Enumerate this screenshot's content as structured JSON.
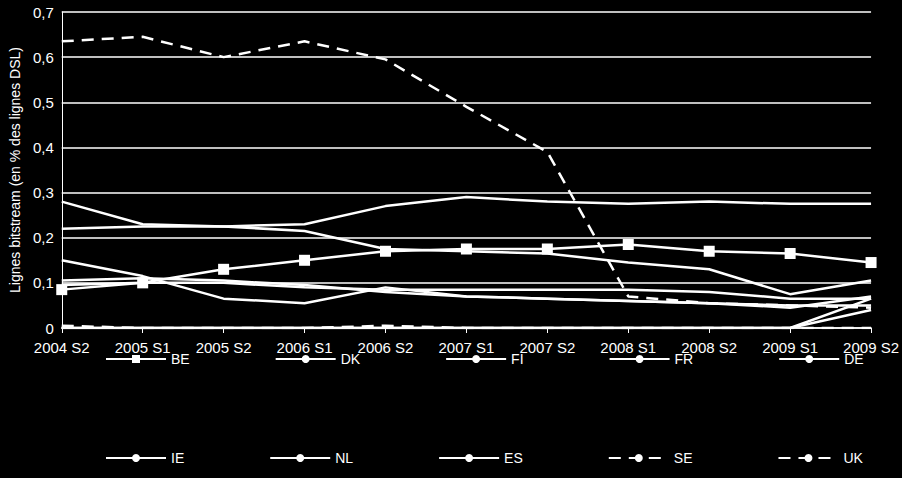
{
  "chart_data": {
    "type": "line",
    "y_label": "Lignes bitstream (en % des lignes DSL)",
    "categories": [
      "2004 S2",
      "2005 S1",
      "2005 S2",
      "2006 S1",
      "2006 S2",
      "2007 S1",
      "2007 S2",
      "2008 S1",
      "2008 S2",
      "2009 S1",
      "2009 S2"
    ],
    "ylim": [
      0,
      0.7
    ],
    "yticks": [
      0,
      {
        "value": 0.1,
        "label": "0,1"
      },
      {
        "value": 0.2,
        "label": "0,2"
      },
      {
        "value": 0.3,
        "label": "0,3"
      },
      {
        "value": 0.4,
        "label": "0,4"
      },
      {
        "value": 0.5,
        "label": "0,5"
      },
      {
        "value": 0.6,
        "label": "0,6"
      },
      {
        "value": 0.7,
        "label": "0,7"
      }
    ],
    "grid": true,
    "legend": "bottom",
    "series": [
      {
        "name": "BE",
        "color": "#ffffff",
        "marker": "square",
        "line_style": "solid",
        "values": [
          0.085,
          0.1,
          0.13,
          0.15,
          0.17,
          0.175,
          0.175,
          0.185,
          0.17,
          0.165,
          0.145
        ]
      },
      {
        "name": "DK",
        "color": "#ffffff",
        "marker": "none",
        "line_style": "solid",
        "values": [
          0.22,
          0.225,
          0.225,
          0.23,
          0.27,
          0.29,
          0.28,
          0.275,
          0.28,
          0.275,
          0.275
        ]
      },
      {
        "name": "FI",
        "color": "#ffffff",
        "marker": "none",
        "line_style": "solid",
        "values": [
          0.28,
          0.23,
          0.225,
          0.215,
          0.175,
          0.17,
          0.165,
          0.145,
          0.13,
          0.075,
          0.105
        ]
      },
      {
        "name": "FR",
        "color": "#ffffff",
        "marker": "none",
        "line_style": "solid",
        "values": [
          0.15,
          0.115,
          0.065,
          0.055,
          0.09,
          0.07,
          0.065,
          0.06,
          0.055,
          0.045,
          0.07
        ]
      },
      {
        "name": "DE",
        "color": "#ffffff",
        "marker": "none",
        "line_style": "solid",
        "values": [
          0.105,
          0.11,
          0.105,
          0.095,
          0.08,
          0.07,
          0.065,
          0.06,
          0.055,
          0.05,
          0.05
        ]
      },
      {
        "name": "IE",
        "color": "#ffffff",
        "marker": "none",
        "line_style": "solid",
        "values": [
          0.095,
          0.1,
          0.1,
          0.09,
          0.085,
          0.085,
          0.085,
          0.085,
          0.08,
          0.065,
          0.065
        ]
      },
      {
        "name": "NL",
        "color": "#ffffff",
        "marker": "none",
        "line_style": "solid",
        "values": [
          0,
          0,
          0,
          0,
          0,
          0,
          0,
          0,
          0,
          0,
          0.065
        ]
      },
      {
        "name": "ES",
        "color": "#ffffff",
        "marker": "none",
        "line_style": "solid",
        "values": [
          0,
          0,
          0,
          0,
          0,
          0,
          0,
          0,
          0,
          0,
          0.04
        ]
      },
      {
        "name": "SE",
        "color": "#ffffff",
        "marker": "none",
        "line_style": "dashed",
        "values": [
          0.005,
          0,
          0,
          0,
          0.005,
          0,
          0,
          0,
          0,
          0,
          0
        ]
      },
      {
        "name": "UK",
        "color": "#ffffff",
        "marker": "none",
        "line_style": "dashed",
        "values": [
          0.635,
          0.645,
          0.6,
          0.635,
          0.595,
          0.49,
          0.39,
          0.07,
          0.055,
          0.05,
          0.045
        ]
      }
    ]
  }
}
